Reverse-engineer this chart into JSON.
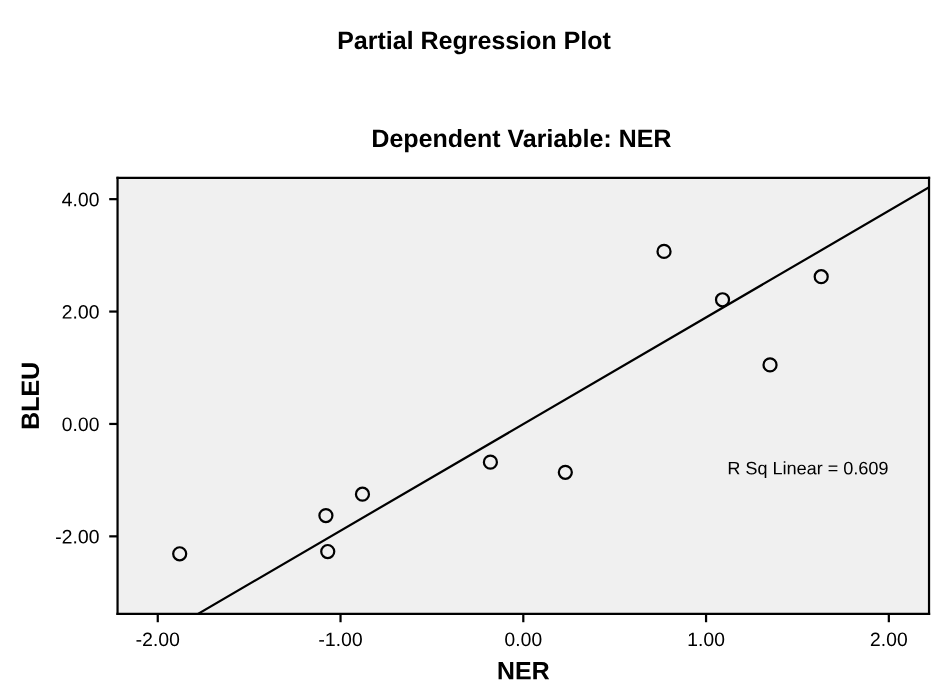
{
  "chart_data": {
    "type": "scatter",
    "title": "Partial Regression Plot",
    "subtitle": "Dependent Variable: NER",
    "xlabel": "NER",
    "ylabel": "BLEU",
    "x": [
      -1.88,
      -1.08,
      -1.07,
      -0.88,
      -0.18,
      0.23,
      0.77,
      1.09,
      1.35,
      1.63
    ],
    "series": [
      {
        "color": "#000000",
        "marker": "circle",
        "values": [
          -2.31,
          -1.63,
          -2.27,
          -1.25,
          -0.68,
          -0.86,
          3.07,
          2.21,
          1.05,
          2.62
        ]
      },
      {
        "type": "line",
        "color": "#000000",
        "x": [
          -1.78,
          2.22
        ],
        "values": [
          -3.38,
          4.21
        ]
      }
    ],
    "xlim": [
      -2.22,
      2.22
    ],
    "ylim": [
      -3.38,
      4.38
    ],
    "xticks": [
      {
        "value": -2,
        "label": "-2.00"
      },
      {
        "value": -1,
        "label": "-1.00"
      },
      {
        "value": 0,
        "label": "0.00"
      },
      {
        "value": 1,
        "label": "1.00"
      },
      {
        "value": 2,
        "label": "2.00"
      }
    ],
    "yticks": [
      {
        "value": -2,
        "label": "-2.00"
      },
      {
        "value": 0,
        "label": "0.00"
      },
      {
        "value": 2,
        "label": "2.00"
      },
      {
        "value": 4,
        "label": "4.00"
      }
    ],
    "annotations": [
      "R Sq Linear = 0.609"
    ],
    "grid": false
  }
}
